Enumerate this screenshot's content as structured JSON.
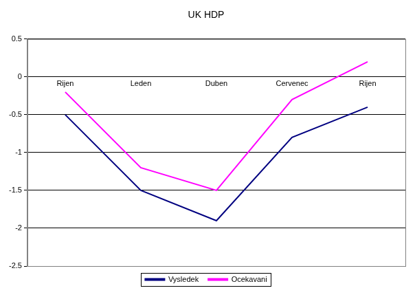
{
  "chart_data": {
    "type": "line",
    "title": "UK HDP",
    "categories": [
      "Rijen",
      "Leden",
      "Duben",
      "Cervenec",
      "Rijen"
    ],
    "series": [
      {
        "name": "Vysledek",
        "color": "#000080",
        "values": [
          -0.5,
          -1.5,
          -1.9,
          -0.8,
          -0.4
        ]
      },
      {
        "name": "Ocekavani",
        "color": "#ff00ff",
        "values": [
          -0.2,
          -1.2,
          -1.5,
          -0.3,
          0.2
        ]
      }
    ],
    "ylim": [
      -2.5,
      0.5
    ],
    "yticks": [
      -2.5,
      -2,
      -1.5,
      -1,
      -0.5,
      0,
      0.5
    ],
    "grid": true,
    "legend": "bottom"
  }
}
